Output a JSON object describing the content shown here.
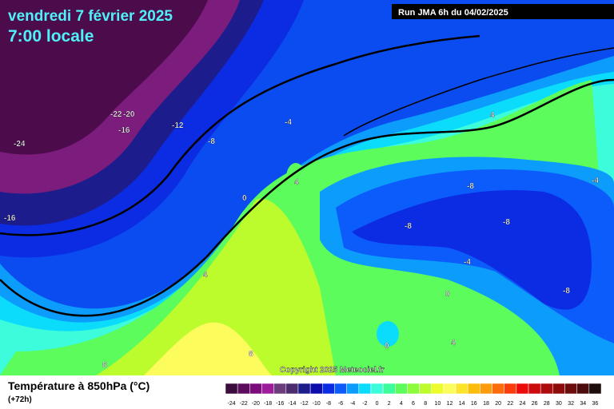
{
  "header": {
    "date": "vendredi 7 février 2025",
    "time": "7:00 locale",
    "run": "Run JMA 6h du 04/02/2025"
  },
  "map": {
    "copyright": "Copyright 2025 Meteociel.fr",
    "labels": [
      "-22",
      "-20",
      "-16",
      "-24",
      "-12",
      "-8",
      "-4",
      "-16",
      "0",
      "4",
      "4",
      "8",
      "8",
      "4",
      "-8",
      "-8",
      "-8",
      "-4",
      "-4",
      "0",
      "0",
      "4",
      "-8"
    ]
  },
  "legend": {
    "title": "Température à 850hPa (°C)",
    "subtitle": "(+72h)",
    "values": [
      -24,
      -22,
      -20,
      -18,
      -16,
      -14,
      -12,
      -10,
      -8,
      -6,
      -4,
      -2,
      0,
      2,
      4,
      6,
      8,
      10,
      12,
      14,
      16,
      18,
      20,
      22,
      24,
      26,
      28,
      30,
      32,
      34,
      36
    ],
    "colors": [
      "#3c0c3c",
      "#5c0c5c",
      "#7c0c7c",
      "#9c1c9c",
      "#6c3c7c",
      "#4c2c6c",
      "#1c1c8c",
      "#0c0cac",
      "#0c2ce4",
      "#0c5cfc",
      "#0c9cfc",
      "#0cdcfc",
      "#3cfcdc",
      "#3cfc9c",
      "#5cfc5c",
      "#8cfc3c",
      "#bcfc2c",
      "#ecfc2c",
      "#fcfc5c",
      "#fce42c",
      "#fcbc0c",
      "#fc9c0c",
      "#fc6c0c",
      "#fc3c0c",
      "#ec0c0c",
      "#cc0c0c",
      "#ac0c0c",
      "#8c0c0c",
      "#6c0c0c",
      "#4c0c0c",
      "#1c0c0c"
    ]
  }
}
